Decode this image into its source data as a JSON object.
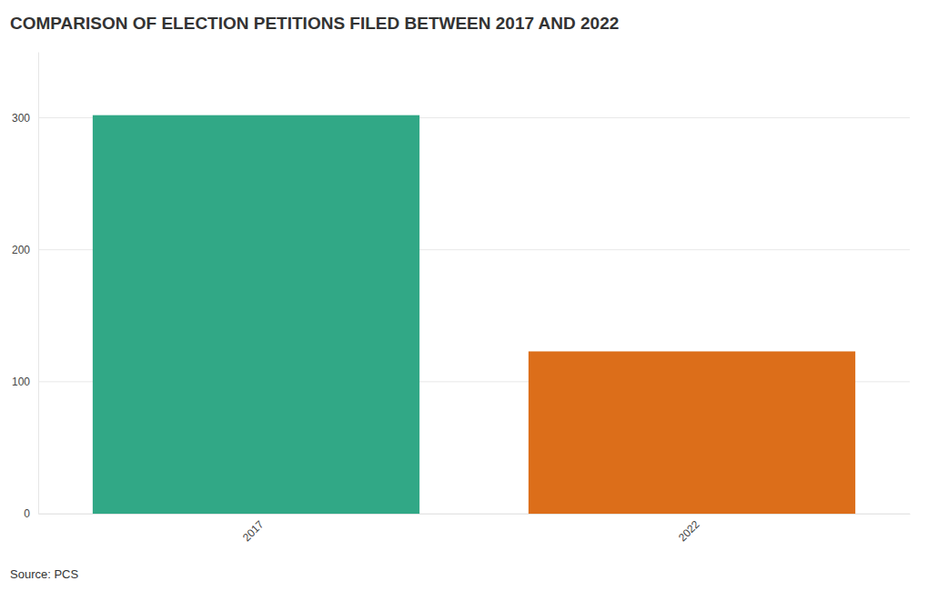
{
  "chart_data": {
    "type": "bar",
    "title": "COMPARISON OF ELECTION PETITIONS FILED BETWEEN 2017 AND 2022",
    "source": "Source: PCS",
    "categories": [
      "2017",
      "2022"
    ],
    "values": [
      302,
      123
    ],
    "colors": [
      "#31a886",
      "#dc6e1a"
    ],
    "ylim": [
      0,
      350
    ],
    "yticks": [
      0,
      100,
      200,
      300
    ],
    "grid": true
  }
}
